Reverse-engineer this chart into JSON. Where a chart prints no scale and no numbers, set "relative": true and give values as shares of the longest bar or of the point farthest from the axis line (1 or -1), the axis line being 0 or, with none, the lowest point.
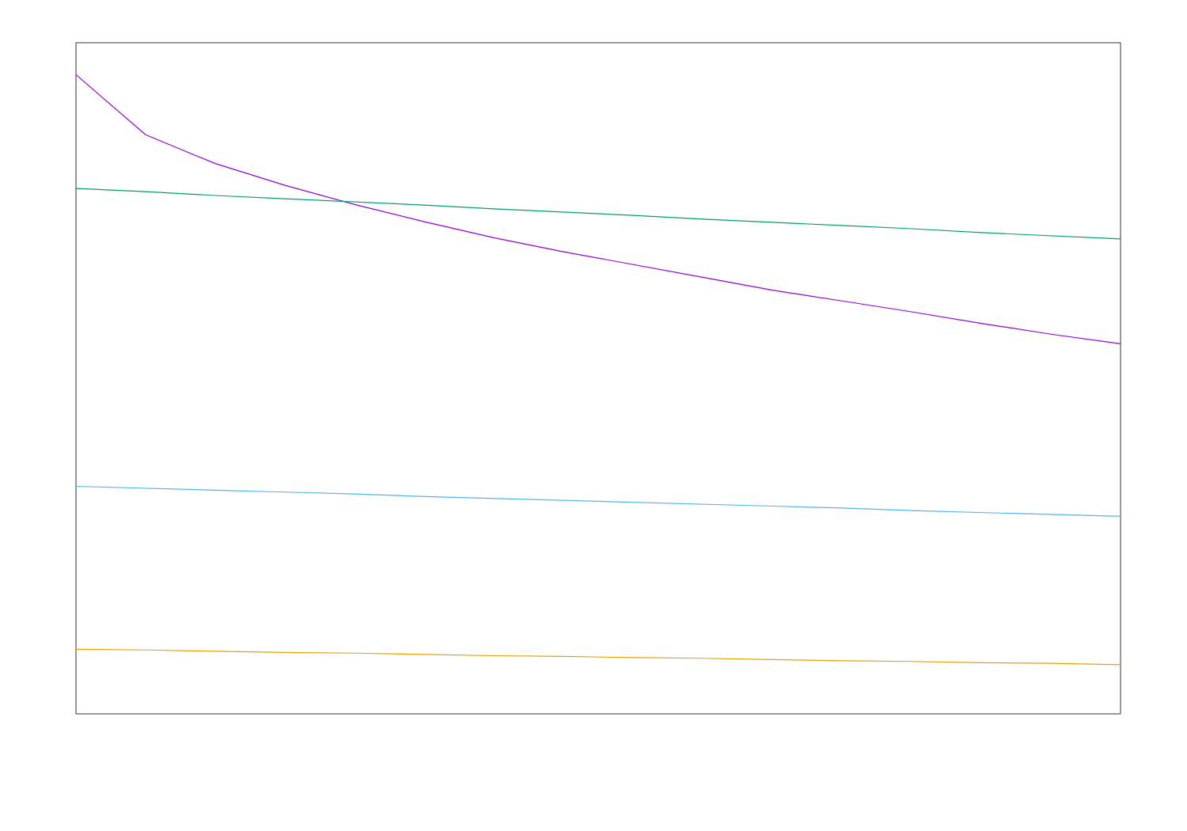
{
  "chart_data": {
    "type": "line",
    "relative": true,
    "marker": "none",
    "line_style": "solid",
    "categories": [
      null,
      null,
      null,
      null,
      null,
      null,
      null,
      null,
      null,
      null,
      null,
      null,
      null,
      null,
      null,
      null
    ],
    "series": [
      {
        "color": "#9400d3",
        "values": [
          1,
          0.906,
          0.861,
          0.827,
          0.797,
          0.77,
          0.745,
          0.723,
          0.703,
          0.683,
          0.663,
          0.646,
          0.629,
          0.611,
          0.594,
          0.579
        ]
      },
      {
        "color": "#009e73",
        "values": [
          0.822,
          0.817,
          0.811,
          0.806,
          0.801,
          0.796,
          0.79,
          0.785,
          0.78,
          0.774,
          0.769,
          0.764,
          0.759,
          0.753,
          0.748,
          0.743
        ]
      },
      {
        "color": "#56b4e9",
        "values": [
          0.356,
          0.353,
          0.35,
          0.347,
          0.344,
          0.34,
          0.337,
          0.334,
          0.331,
          0.328,
          0.325,
          0.322,
          0.318,
          0.315,
          0.312,
          0.309
        ]
      },
      {
        "color": "#e69f00",
        "values": [
          0.101,
          0.1,
          0.098,
          0.096,
          0.095,
          0.093,
          0.091,
          0.09,
          0.088,
          0.087,
          0.085,
          0.083,
          0.082,
          0.08,
          0.079,
          0.077
        ]
      }
    ]
  }
}
